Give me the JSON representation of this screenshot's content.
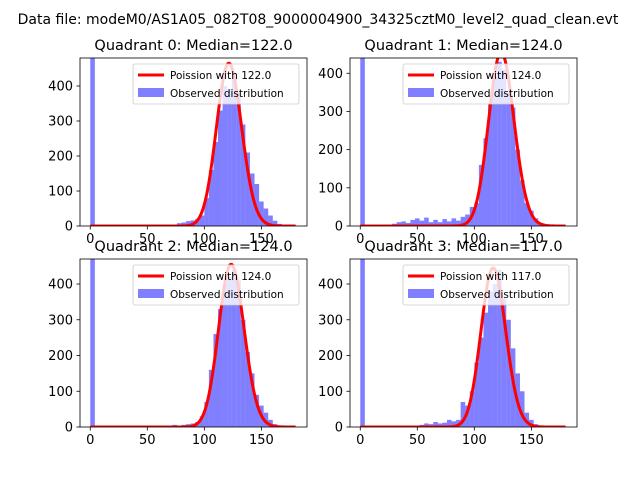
{
  "figure": {
    "suptitle": "Data file: modeM0/AS1A05_082T08_9000004900_34325cztM0_level2_quad_clean.evt"
  },
  "chart_data": [
    {
      "type": "bar",
      "title": "Quadrant 0: Median=122.0",
      "median": 122.0,
      "xlim": [
        -9,
        190
      ],
      "ylim": [
        0,
        480
      ],
      "xticks": [
        0,
        50,
        100,
        150
      ],
      "yticks": [
        0,
        100,
        200,
        300,
        400
      ],
      "bin_width": 4,
      "hist_bins": [
        [
          0,
          480
        ],
        [
          72,
          4
        ],
        [
          76,
          8
        ],
        [
          80,
          10
        ],
        [
          84,
          14
        ],
        [
          88,
          16
        ],
        [
          92,
          20
        ],
        [
          96,
          30
        ],
        [
          100,
          80
        ],
        [
          104,
          160
        ],
        [
          108,
          240
        ],
        [
          112,
          330
        ],
        [
          116,
          400
        ],
        [
          120,
          390
        ],
        [
          124,
          420
        ],
        [
          128,
          380
        ],
        [
          132,
          290
        ],
        [
          136,
          210
        ],
        [
          140,
          150
        ],
        [
          144,
          120
        ],
        [
          148,
          70
        ],
        [
          152,
          50
        ],
        [
          156,
          30
        ],
        [
          160,
          15
        ],
        [
          164,
          6
        ]
      ],
      "series": [
        {
          "name": "Poission with 122.0",
          "kind": "poisson",
          "mean": 122.0,
          "scale": 465,
          "x_range": [
            0,
            180
          ],
          "color": "#ff0000"
        },
        {
          "name": "Observed distribution",
          "kind": "histogram",
          "color": "#0000ff",
          "alpha": 0.5
        }
      ],
      "legend": {
        "location": "upper right",
        "entries": [
          "Poission with 122.0",
          "Observed distribution"
        ]
      }
    },
    {
      "type": "bar",
      "title": "Quadrant 1: Median=124.0",
      "median": 124.0,
      "xlim": [
        -9,
        190
      ],
      "ylim": [
        0,
        440
      ],
      "xticks": [
        0,
        50,
        100,
        150
      ],
      "yticks": [
        0,
        100,
        200,
        300,
        400
      ],
      "bin_width": 4,
      "hist_bins": [
        [
          0,
          440
        ],
        [
          24,
          4
        ],
        [
          28,
          6
        ],
        [
          32,
          10
        ],
        [
          36,
          12
        ],
        [
          40,
          8
        ],
        [
          44,
          16
        ],
        [
          48,
          20
        ],
        [
          52,
          14
        ],
        [
          56,
          22
        ],
        [
          60,
          10
        ],
        [
          64,
          16
        ],
        [
          68,
          10
        ],
        [
          72,
          18
        ],
        [
          76,
          12
        ],
        [
          80,
          20
        ],
        [
          84,
          14
        ],
        [
          88,
          24
        ],
        [
          92,
          30
        ],
        [
          96,
          50
        ],
        [
          100,
          60
        ],
        [
          104,
          160
        ],
        [
          108,
          230
        ],
        [
          112,
          320
        ],
        [
          116,
          390
        ],
        [
          120,
          430
        ],
        [
          124,
          410
        ],
        [
          128,
          350
        ],
        [
          132,
          310
        ],
        [
          136,
          200
        ],
        [
          140,
          120
        ],
        [
          144,
          60
        ],
        [
          148,
          40
        ],
        [
          152,
          20
        ],
        [
          156,
          8
        ]
      ],
      "series": [
        {
          "name": "Poission with 124.0",
          "kind": "poisson",
          "mean": 124.0,
          "scale": 455,
          "x_range": [
            0,
            180
          ],
          "color": "#ff0000"
        },
        {
          "name": "Observed distribution",
          "kind": "histogram",
          "color": "#0000ff",
          "alpha": 0.5
        }
      ],
      "legend": {
        "location": "upper right",
        "entries": [
          "Poission with 124.0",
          "Observed distribution"
        ]
      }
    },
    {
      "type": "bar",
      "title": "Quadrant 2: Median=124.0",
      "median": 124.0,
      "xlim": [
        -9,
        190
      ],
      "ylim": [
        0,
        470
      ],
      "xticks": [
        0,
        50,
        100,
        150
      ],
      "yticks": [
        0,
        100,
        200,
        300,
        400
      ],
      "bin_width": 4,
      "hist_bins": [
        [
          0,
          470
        ],
        [
          72,
          6
        ],
        [
          76,
          4
        ],
        [
          80,
          6
        ],
        [
          84,
          8
        ],
        [
          88,
          10
        ],
        [
          92,
          14
        ],
        [
          96,
          30
        ],
        [
          100,
          70
        ],
        [
          104,
          160
        ],
        [
          108,
          260
        ],
        [
          112,
          330
        ],
        [
          116,
          400
        ],
        [
          120,
          420
        ],
        [
          124,
          440
        ],
        [
          128,
          410
        ],
        [
          132,
          300
        ],
        [
          136,
          210
        ],
        [
          140,
          150
        ],
        [
          144,
          90
        ],
        [
          148,
          60
        ],
        [
          152,
          40
        ],
        [
          156,
          20
        ],
        [
          160,
          8
        ]
      ],
      "series": [
        {
          "name": "Poission with 124.0",
          "kind": "poisson",
          "mean": 124.0,
          "scale": 455,
          "x_range": [
            0,
            180
          ],
          "color": "#ff0000"
        },
        {
          "name": "Observed distribution",
          "kind": "histogram",
          "color": "#0000ff",
          "alpha": 0.5
        }
      ],
      "legend": {
        "location": "upper right",
        "entries": [
          "Poission with 124.0",
          "Observed distribution"
        ]
      }
    },
    {
      "type": "bar",
      "title": "Quadrant 3: Median=117.0",
      "median": 117.0,
      "xlim": [
        -9,
        190
      ],
      "ylim": [
        0,
        470
      ],
      "xticks": [
        0,
        50,
        100,
        150
      ],
      "yticks": [
        0,
        100,
        200,
        300,
        400
      ],
      "bin_width": 4,
      "hist_bins": [
        [
          0,
          470
        ],
        [
          52,
          6
        ],
        [
          56,
          10
        ],
        [
          60,
          8
        ],
        [
          64,
          14
        ],
        [
          68,
          10
        ],
        [
          72,
          12
        ],
        [
          76,
          20
        ],
        [
          80,
          16
        ],
        [
          84,
          20
        ],
        [
          88,
          70
        ],
        [
          92,
          60
        ],
        [
          96,
          100
        ],
        [
          100,
          180
        ],
        [
          104,
          250
        ],
        [
          108,
          320
        ],
        [
          112,
          380
        ],
        [
          116,
          400
        ],
        [
          120,
          440
        ],
        [
          124,
          360
        ],
        [
          128,
          300
        ],
        [
          132,
          220
        ],
        [
          136,
          150
        ],
        [
          140,
          100
        ],
        [
          144,
          40
        ],
        [
          148,
          20
        ],
        [
          152,
          8
        ]
      ],
      "series": [
        {
          "name": "Poission with 117.0",
          "kind": "poisson",
          "mean": 117.0,
          "scale": 445,
          "x_range": [
            0,
            180
          ],
          "color": "#ff0000"
        },
        {
          "name": "Observed distribution",
          "kind": "histogram",
          "color": "#0000ff",
          "alpha": 0.5
        }
      ],
      "legend": {
        "location": "upper right",
        "entries": [
          "Poission with 117.0",
          "Observed distribution"
        ]
      }
    }
  ]
}
